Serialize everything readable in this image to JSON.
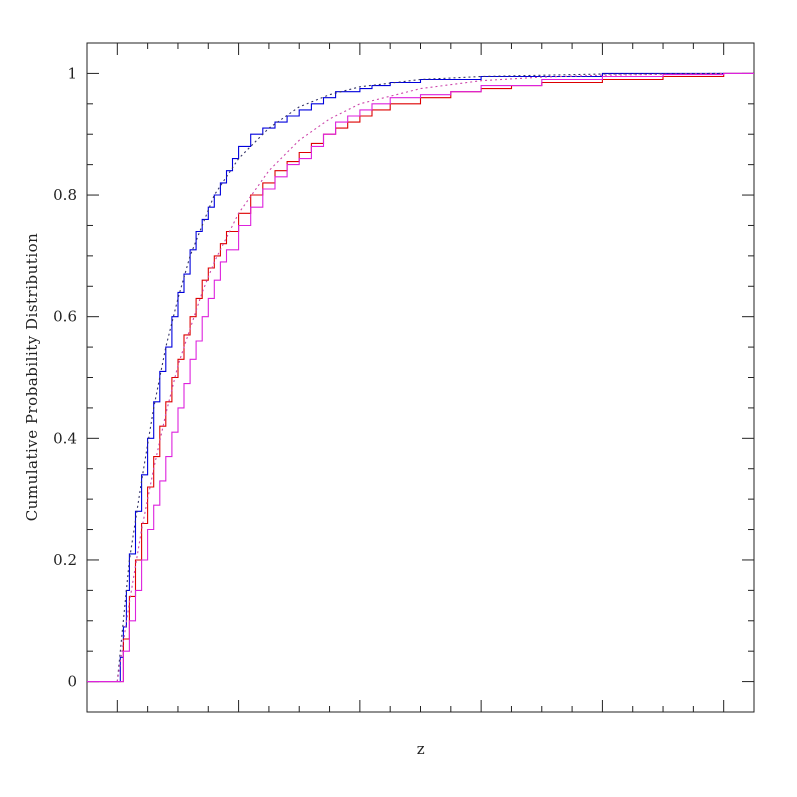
{
  "chart_data": {
    "type": "line",
    "title": "",
    "xlabel": "z",
    "ylabel": "Cumulative Probability Distribution",
    "ylim": [
      -0.05,
      1.05
    ],
    "xlim": [
      -0.05,
      1.05
    ],
    "x_tick_labels_shown": false,
    "y_ticks": [
      0,
      0.2,
      0.4,
      0.6,
      0.8,
      1
    ],
    "y_tick_labels": [
      "0",
      "0.2",
      "0.4",
      "0.6",
      "0.8",
      "1"
    ],
    "series": [
      {
        "color": "#0000dd",
        "style": "step",
        "x": [
          -0.05,
          0.0,
          0.005,
          0.01,
          0.015,
          0.02,
          0.03,
          0.04,
          0.05,
          0.06,
          0.07,
          0.08,
          0.09,
          0.1,
          0.11,
          0.12,
          0.13,
          0.14,
          0.15,
          0.16,
          0.17,
          0.18,
          0.19,
          0.2,
          0.22,
          0.24,
          0.26,
          0.28,
          0.3,
          0.32,
          0.34,
          0.36,
          0.38,
          0.4,
          0.42,
          0.45,
          0.5,
          0.55,
          0.6,
          0.7,
          0.8,
          1.05
        ],
        "y": [
          0.0,
          0.0,
          0.04,
          0.09,
          0.15,
          0.21,
          0.28,
          0.34,
          0.4,
          0.46,
          0.51,
          0.55,
          0.6,
          0.64,
          0.67,
          0.71,
          0.74,
          0.76,
          0.78,
          0.8,
          0.82,
          0.84,
          0.86,
          0.88,
          0.9,
          0.91,
          0.92,
          0.93,
          0.94,
          0.95,
          0.96,
          0.97,
          0.97,
          0.975,
          0.98,
          0.985,
          0.99,
          0.99,
          0.995,
          0.995,
          1.0,
          1.0
        ]
      },
      {
        "color": "#333366",
        "style": "dotted",
        "x": [
          0.0,
          0.02,
          0.04,
          0.06,
          0.08,
          0.1,
          0.12,
          0.14,
          0.16,
          0.18,
          0.2,
          0.25,
          0.3,
          0.35,
          0.4,
          0.5,
          0.6,
          0.8,
          1.0
        ],
        "y": [
          0.0,
          0.2,
          0.33,
          0.45,
          0.55,
          0.63,
          0.7,
          0.75,
          0.8,
          0.83,
          0.86,
          0.91,
          0.945,
          0.965,
          0.978,
          0.99,
          0.995,
          0.999,
          1.0
        ]
      },
      {
        "color": "#dd0000",
        "style": "step",
        "x": [
          -0.05,
          0.0,
          0.01,
          0.02,
          0.03,
          0.04,
          0.05,
          0.06,
          0.07,
          0.08,
          0.09,
          0.1,
          0.11,
          0.12,
          0.13,
          0.14,
          0.15,
          0.16,
          0.17,
          0.18,
          0.2,
          0.22,
          0.24,
          0.26,
          0.28,
          0.3,
          0.32,
          0.34,
          0.36,
          0.38,
          0.4,
          0.42,
          0.45,
          0.5,
          0.55,
          0.6,
          0.65,
          0.7,
          0.8,
          0.9,
          1.0,
          1.05
        ],
        "y": [
          0.0,
          0.0,
          0.07,
          0.14,
          0.2,
          0.26,
          0.32,
          0.37,
          0.42,
          0.46,
          0.5,
          0.53,
          0.57,
          0.6,
          0.63,
          0.66,
          0.68,
          0.7,
          0.72,
          0.74,
          0.77,
          0.8,
          0.82,
          0.84,
          0.855,
          0.87,
          0.885,
          0.9,
          0.91,
          0.92,
          0.93,
          0.94,
          0.95,
          0.96,
          0.97,
          0.975,
          0.98,
          0.985,
          0.99,
          0.995,
          1.0,
          1.0
        ]
      },
      {
        "color": "#cc44aa",
        "style": "dotted",
        "x": [
          0.0,
          0.02,
          0.04,
          0.06,
          0.08,
          0.1,
          0.12,
          0.14,
          0.16,
          0.18,
          0.2,
          0.25,
          0.3,
          0.35,
          0.4,
          0.5,
          0.6,
          0.7,
          0.8,
          1.0
        ],
        "y": [
          0.0,
          0.13,
          0.25,
          0.35,
          0.44,
          0.52,
          0.58,
          0.64,
          0.69,
          0.73,
          0.77,
          0.84,
          0.89,
          0.925,
          0.95,
          0.975,
          0.988,
          0.994,
          0.997,
          1.0
        ]
      },
      {
        "color": "#dd22dd",
        "style": "step",
        "x": [
          -0.05,
          0.0,
          0.01,
          0.02,
          0.03,
          0.04,
          0.05,
          0.06,
          0.07,
          0.08,
          0.09,
          0.1,
          0.11,
          0.12,
          0.13,
          0.14,
          0.15,
          0.16,
          0.17,
          0.18,
          0.2,
          0.22,
          0.24,
          0.26,
          0.28,
          0.3,
          0.32,
          0.34,
          0.36,
          0.38,
          0.4,
          0.42,
          0.45,
          0.5,
          0.55,
          0.6,
          0.7,
          0.8,
          0.9,
          1.0,
          1.05
        ],
        "y": [
          0.0,
          0.0,
          0.05,
          0.1,
          0.15,
          0.2,
          0.25,
          0.29,
          0.33,
          0.37,
          0.41,
          0.45,
          0.49,
          0.53,
          0.56,
          0.6,
          0.63,
          0.66,
          0.69,
          0.71,
          0.75,
          0.78,
          0.81,
          0.83,
          0.85,
          0.86,
          0.88,
          0.9,
          0.92,
          0.93,
          0.94,
          0.95,
          0.96,
          0.965,
          0.97,
          0.98,
          0.99,
          0.995,
          0.998,
          1.0,
          1.0
        ]
      }
    ]
  }
}
